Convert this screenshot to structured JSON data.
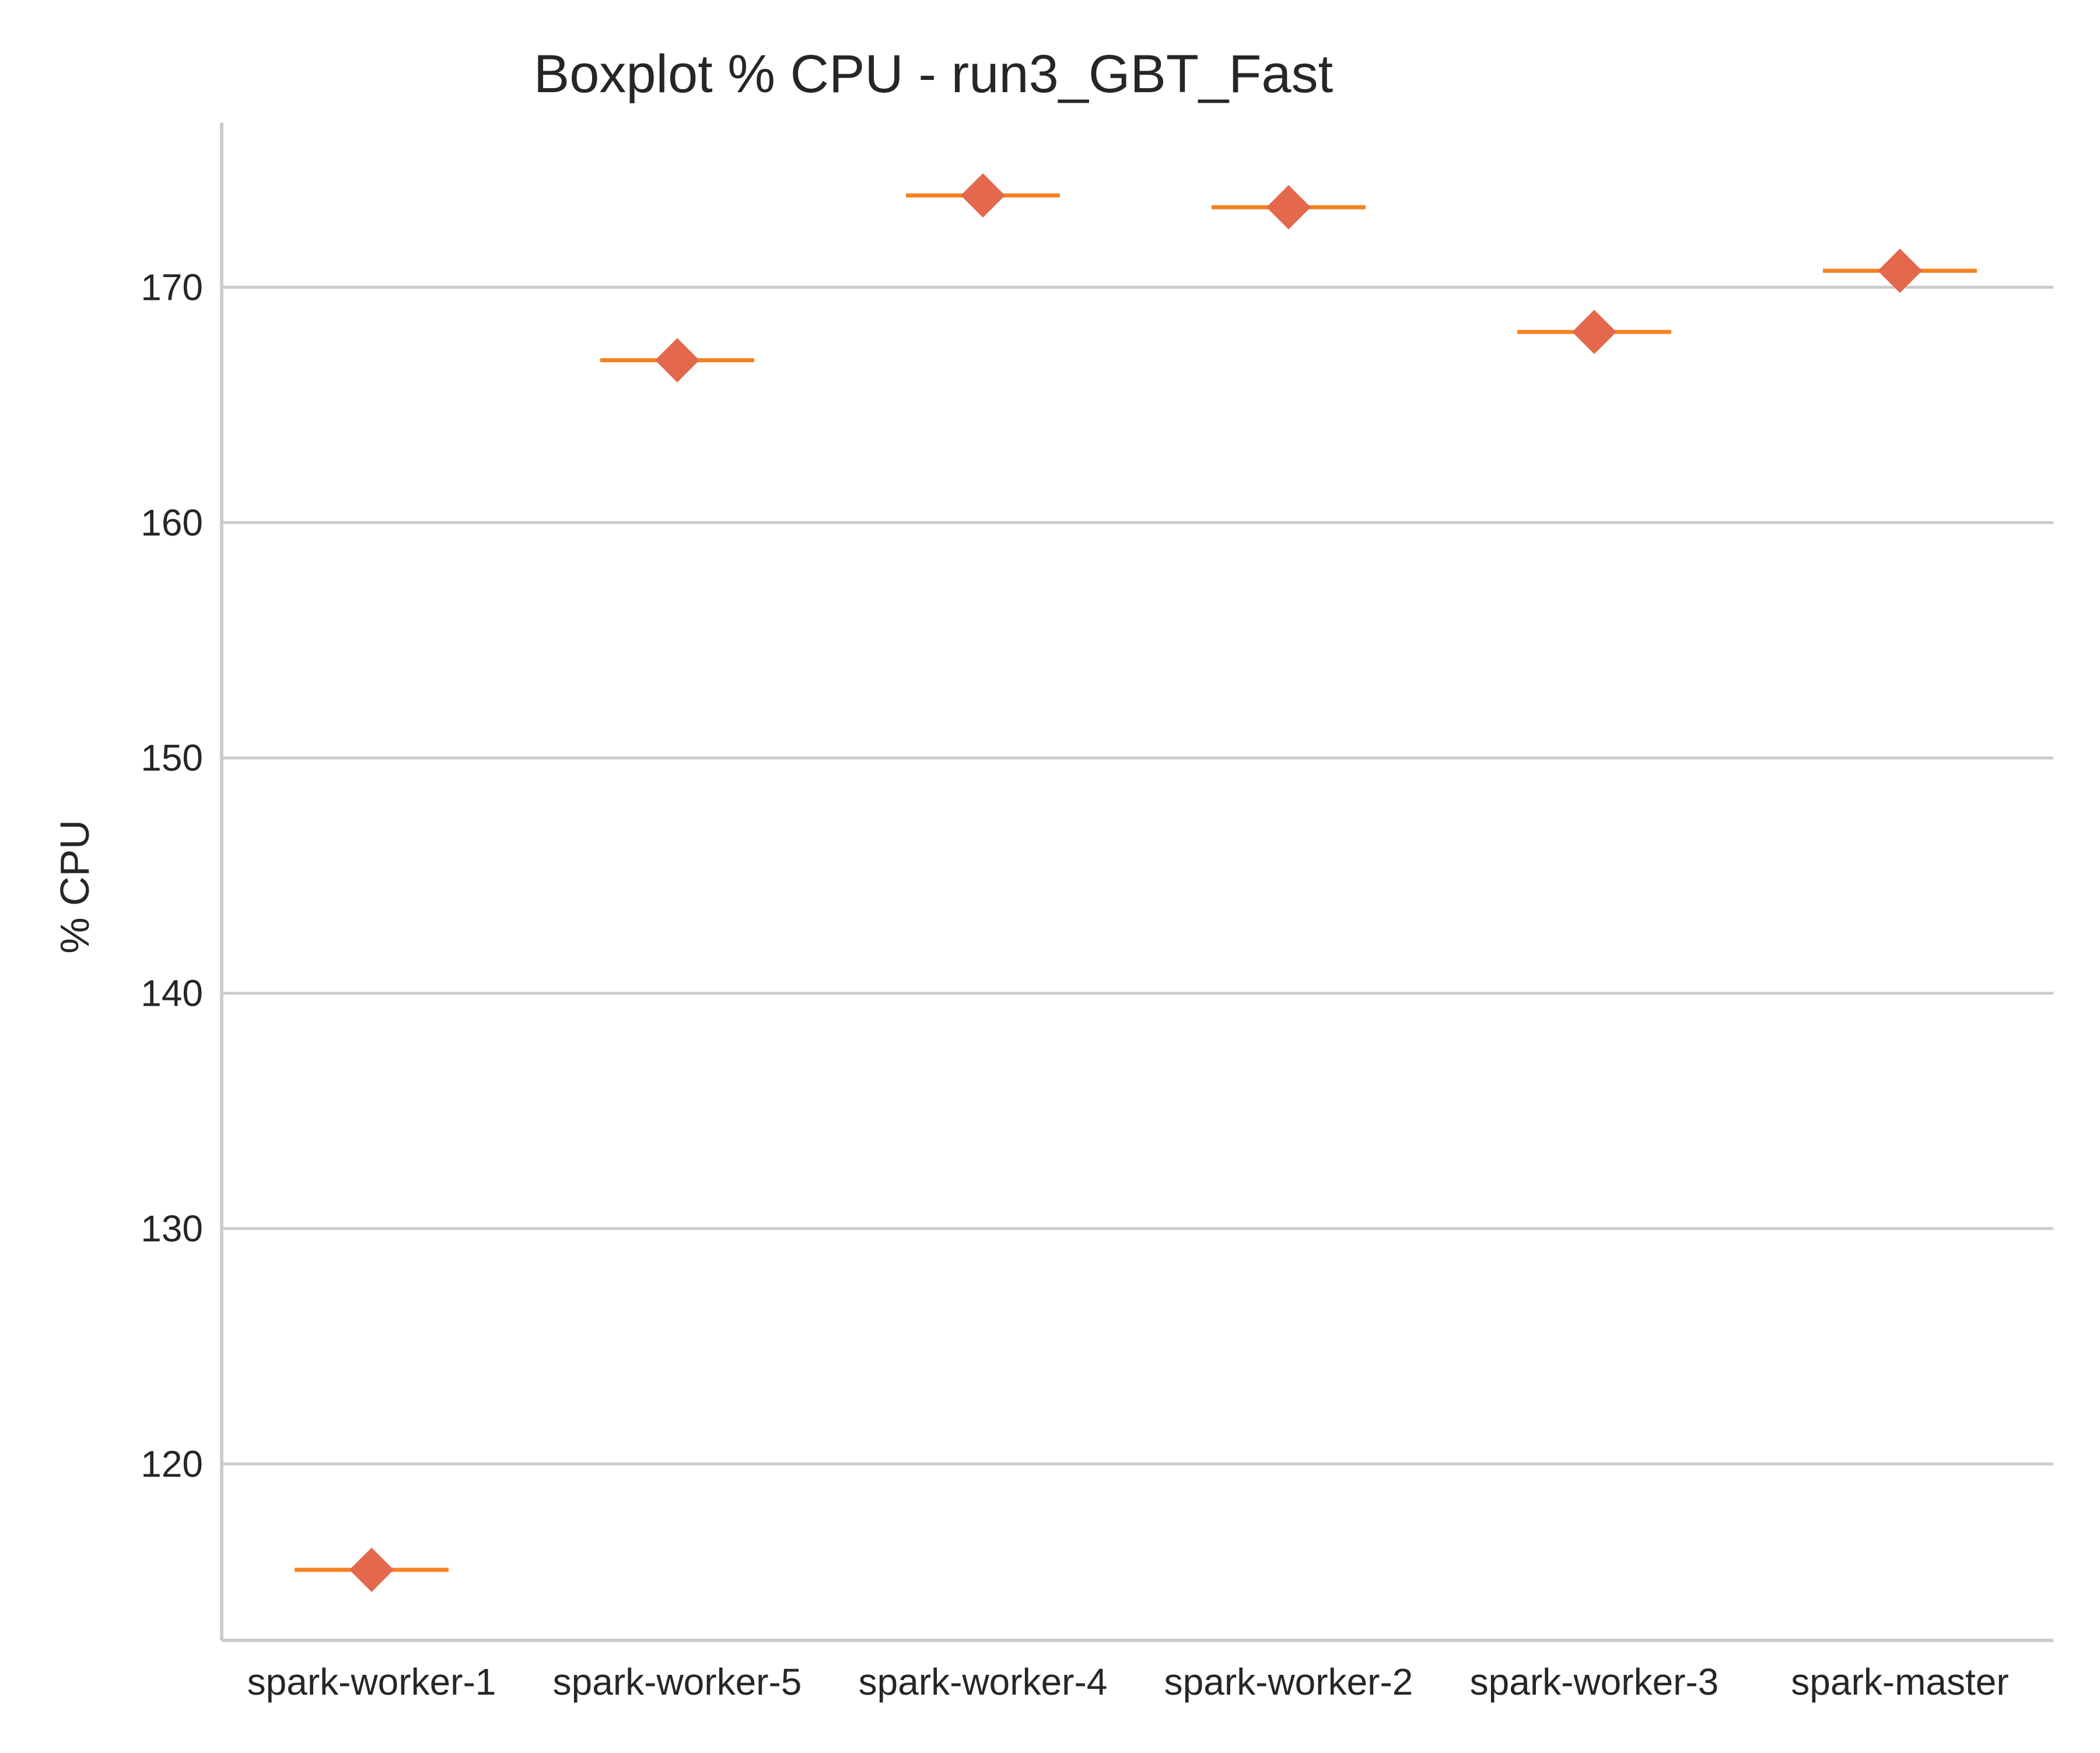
{
  "chart_data": {
    "type": "box",
    "title": "Boxplot % CPU - run3_GBT_Fast",
    "xlabel": "",
    "ylabel": "% CPU",
    "ylim": [
      112.5,
      177
    ],
    "yticks": [
      120,
      130,
      140,
      150,
      160,
      170
    ],
    "grid": "horizontal",
    "categories": [
      "spark-worker-1",
      "spark-worker-5",
      "spark-worker-4",
      "spark-worker-2",
      "spark-worker-3",
      "spark-master"
    ],
    "values": [
      115.5,
      166.9,
      173.9,
      173.4,
      168.1,
      170.7
    ],
    "colors": {
      "median_line": "#f58220",
      "mean_marker": "#e4684b",
      "grid": "#cccccc",
      "axis": "#cccccc",
      "text": "#262626"
    }
  }
}
